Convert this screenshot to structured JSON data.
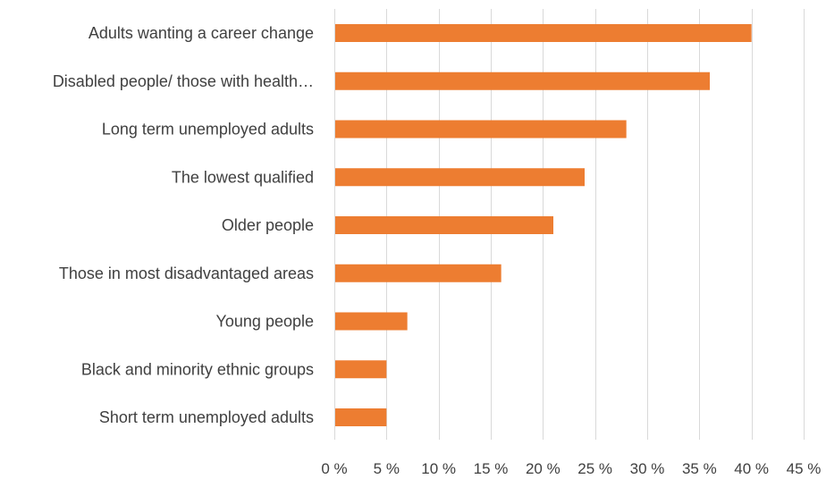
{
  "chart_data": {
    "type": "bar",
    "orientation": "horizontal",
    "categories": [
      "Adults wanting a career change",
      "Disabled people/ those with health…",
      "Long term unemployed adults",
      "The lowest qualified",
      "Older people",
      "Those in most disadvantaged areas",
      "Young people",
      "Black and minority ethnic groups",
      "Short term unemployed adults"
    ],
    "values": [
      40,
      36,
      28,
      24,
      21,
      16,
      7,
      5,
      5
    ],
    "xlim": [
      0,
      45
    ],
    "xticks": [
      0,
      5,
      10,
      15,
      20,
      25,
      30,
      35,
      40,
      45
    ],
    "xtick_labels": [
      "0 %",
      "5 %",
      "10 %",
      "15 %",
      "20 %",
      "25 %",
      "30 %",
      "35 %",
      "40 %",
      "45 %"
    ],
    "grid": "vertical",
    "bar_color": "#ed7d31",
    "grid_color": "#d9d9d9",
    "text_color": "#404040"
  }
}
